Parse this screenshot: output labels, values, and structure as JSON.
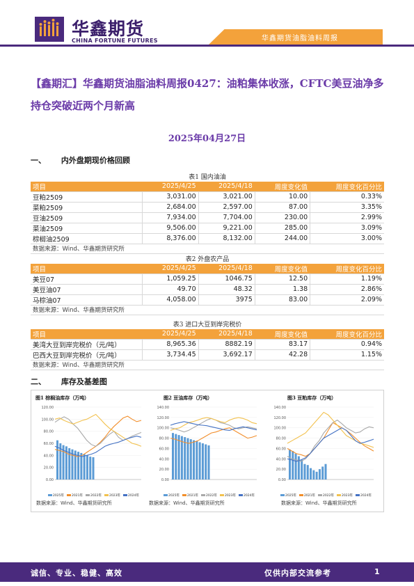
{
  "header": {
    "brand_cn": "华鑫期货",
    "brand_en": "CHINA FORTUNE FUTURES",
    "report_tag": "华鑫期货油脂油料周报"
  },
  "title": "【鑫期汇】华鑫期货油脂油料周报0427：油粕集体收涨，CFTC美豆油净多持仓突破近两个月新高",
  "date": "2025年04月27日",
  "section1": {
    "num": "一、",
    "label": "内外盘期现价格回顾"
  },
  "section2": {
    "num": "二、",
    "label": "库存及基差图"
  },
  "table1": {
    "caption": "表1 国内油油",
    "headers": [
      "项目",
      "2025/4/25",
      "2025/4/18",
      "周度变化值",
      "周度变化百分比"
    ],
    "rows": [
      [
        "豆粕2509",
        "3,031.00",
        "3,021.00",
        "10.00",
        "0.33%"
      ],
      [
        "菜粕2509",
        "2,684.00",
        "2,597.00",
        "87.00",
        "3.35%"
      ],
      [
        "豆油2509",
        "7,934.00",
        "7,704.00",
        "230.00",
        "2.99%"
      ],
      [
        "菜油2509",
        "9,506.00",
        "9,221.00",
        "285.00",
        "3.09%"
      ],
      [
        "棕榈油2509",
        "8,376.00",
        "8,132.00",
        "244.00",
        "3.00%"
      ]
    ],
    "source": "数据来源：Wind、华鑫期货研究所"
  },
  "table2": {
    "caption": "表2 外盘农产品",
    "headers": [
      "项目",
      "2025/4/25",
      "2025/4/18",
      "周度变化值",
      "周度变化百分比"
    ],
    "rows": [
      [
        "美豆07",
        "1,059.25",
        "1046.75",
        "12.50",
        "1.19%"
      ],
      [
        "美豆油07",
        "49.70",
        "48.32",
        "1.38",
        "2.86%"
      ],
      [
        "马棕油07",
        "4,058.00",
        "3975",
        "83.00",
        "2.09%"
      ]
    ],
    "source": "数据来源：Wind、华鑫期货研究所"
  },
  "table3": {
    "caption": "表3 进口大豆到岸完税价",
    "headers": [
      "项目",
      "2025/4/25",
      "2025/4/18",
      "周度变化值",
      "周度变化百分比"
    ],
    "rows": [
      [
        "美湾大豆到岸完税价（元/吨）",
        "8,965.36",
        "8882.19",
        "83.17",
        "0.94%"
      ],
      [
        "巴西大豆到岸完税价（元/吨）",
        "3,734.45",
        "3,692.17",
        "42.28",
        "1.15%"
      ]
    ],
    "source": "数据来源：Wind、华鑫期货研究所"
  },
  "charts_source": "数据来源：Wind、华鑫期货研究所",
  "chart_data": [
    {
      "type": "line",
      "title": "图1 棕榈油库存（万吨）",
      "ylim": [
        0,
        120
      ],
      "yticks": [
        "0.00",
        "20.00",
        "40.00",
        "60.00",
        "80.00",
        "100.00",
        "120.00"
      ],
      "legend": "bottom",
      "series": [
        {
          "name": "2025年",
          "color": "#5b9bd5",
          "kind": "bar",
          "values": [
            65,
            60,
            57,
            55,
            52,
            50,
            48,
            46,
            44,
            42,
            40,
            38,
            37
          ]
        },
        {
          "name": "2021年",
          "color": "#f28e2b",
          "values": [
            50,
            48,
            46,
            42,
            40,
            38,
            40,
            45,
            50,
            55,
            62,
            70,
            80,
            88,
            95,
            102,
            105,
            100,
            96,
            98
          ]
        },
        {
          "name": "2022年",
          "color": "#a9a9a9",
          "values": [
            95,
            100,
            104,
            100,
            92,
            85,
            75,
            65,
            58,
            55,
            60,
            68,
            75,
            80,
            70,
            65,
            68,
            72,
            75,
            78
          ]
        },
        {
          "name": "2023年",
          "color": "#f2c14e",
          "values": [
            100,
            102,
            98,
            95,
            92,
            95,
            98,
            100,
            104,
            108,
            100,
            92,
            85,
            80,
            75,
            70,
            65,
            60,
            58,
            55
          ]
        },
        {
          "name": "2024年",
          "color": "#4472c4",
          "values": [
            55,
            52,
            48,
            45,
            42,
            40,
            38,
            40,
            42,
            45,
            50,
            55,
            58,
            60,
            62,
            65,
            68,
            70,
            72,
            70
          ]
        }
      ]
    },
    {
      "type": "line",
      "title": "图2 豆油库存（万吨）",
      "ylim": [
        0,
        140
      ],
      "yticks": [
        "0.00",
        "20.00",
        "40.00",
        "60.00",
        "80.00",
        "100.00",
        "120.00",
        "140.00"
      ],
      "legend": "bottom",
      "series": [
        {
          "name": "2025年",
          "color": "#5b9bd5",
          "kind": "bar",
          "values": [
            90,
            88,
            86,
            84,
            82,
            80,
            78,
            76,
            74,
            72,
            70,
            68,
            66
          ]
        },
        {
          "name": "2021年",
          "color": "#f28e2b",
          "values": [
            80,
            78,
            75,
            72,
            70,
            72,
            75,
            80,
            85,
            90,
            92,
            95,
            98,
            100,
            95,
            90,
            85,
            80,
            82,
            85
          ]
        },
        {
          "name": "2022年",
          "color": "#a9a9a9",
          "values": [
            100,
            98,
            95,
            92,
            95,
            100,
            105,
            110,
            115,
            118,
            115,
            110,
            108,
            105,
            100,
            98,
            100,
            102,
            100,
            98
          ]
        },
        {
          "name": "2023年",
          "color": "#f2c14e",
          "values": [
            95,
            98,
            100,
            105,
            110,
            112,
            115,
            118,
            120,
            118,
            115,
            112,
            110,
            115,
            118,
            120,
            118,
            115,
            110,
            108
          ]
        },
        {
          "name": "2024年",
          "color": "#4472c4",
          "values": [
            105,
            108,
            110,
            112,
            110,
            108,
            106,
            105,
            104,
            102,
            100,
            98,
            96,
            95,
            98,
            100,
            102,
            100,
            98,
            96
          ]
        }
      ]
    },
    {
      "type": "line",
      "title": "图3 豆粕库存（万吨）",
      "ylim": [
        0,
        140
      ],
      "yticks": [
        "0.00",
        "20.00",
        "40.00",
        "60.00",
        "80.00",
        "100.00",
        "120.00",
        "140.00"
      ],
      "legend": "bottom",
      "series": [
        {
          "name": "2025年",
          "color": "#5b9bd5",
          "kind": "bar",
          "values": [
            58,
            55,
            50,
            45,
            38,
            30,
            28,
            22,
            18,
            15,
            20,
            25,
            30
          ]
        },
        {
          "name": "2021年",
          "color": "#f28e2b",
          "values": [
            60,
            55,
            50,
            48,
            45,
            50,
            60,
            70,
            80,
            95,
            110,
            105,
            100,
            95,
            88,
            80,
            72,
            65,
            60,
            55
          ]
        },
        {
          "name": "2022年",
          "color": "#a9a9a9",
          "values": [
            45,
            40,
            38,
            35,
            40,
            50,
            65,
            75,
            90,
            100,
            110,
            115,
            108,
            100,
            95,
            90,
            92,
            98,
            102,
            100
          ]
        },
        {
          "name": "2023年",
          "color": "#f2c14e",
          "values": [
            70,
            75,
            80,
            85,
            90,
            100,
            110,
            120,
            130,
            125,
            115,
            105,
            95,
            85,
            80,
            75,
            70,
            68,
            65,
            62
          ]
        },
        {
          "name": "2024年",
          "color": "#4472c4",
          "values": [
            40,
            38,
            35,
            38,
            42,
            50,
            60,
            70,
            80,
            85,
            90,
            95,
            100,
            95,
            85,
            75,
            70,
            72,
            75,
            78
          ]
        }
      ]
    }
  ],
  "footer": {
    "left": "诚信、专业、稳健、高效",
    "right": "仅供内部交流参考",
    "page": "1"
  }
}
